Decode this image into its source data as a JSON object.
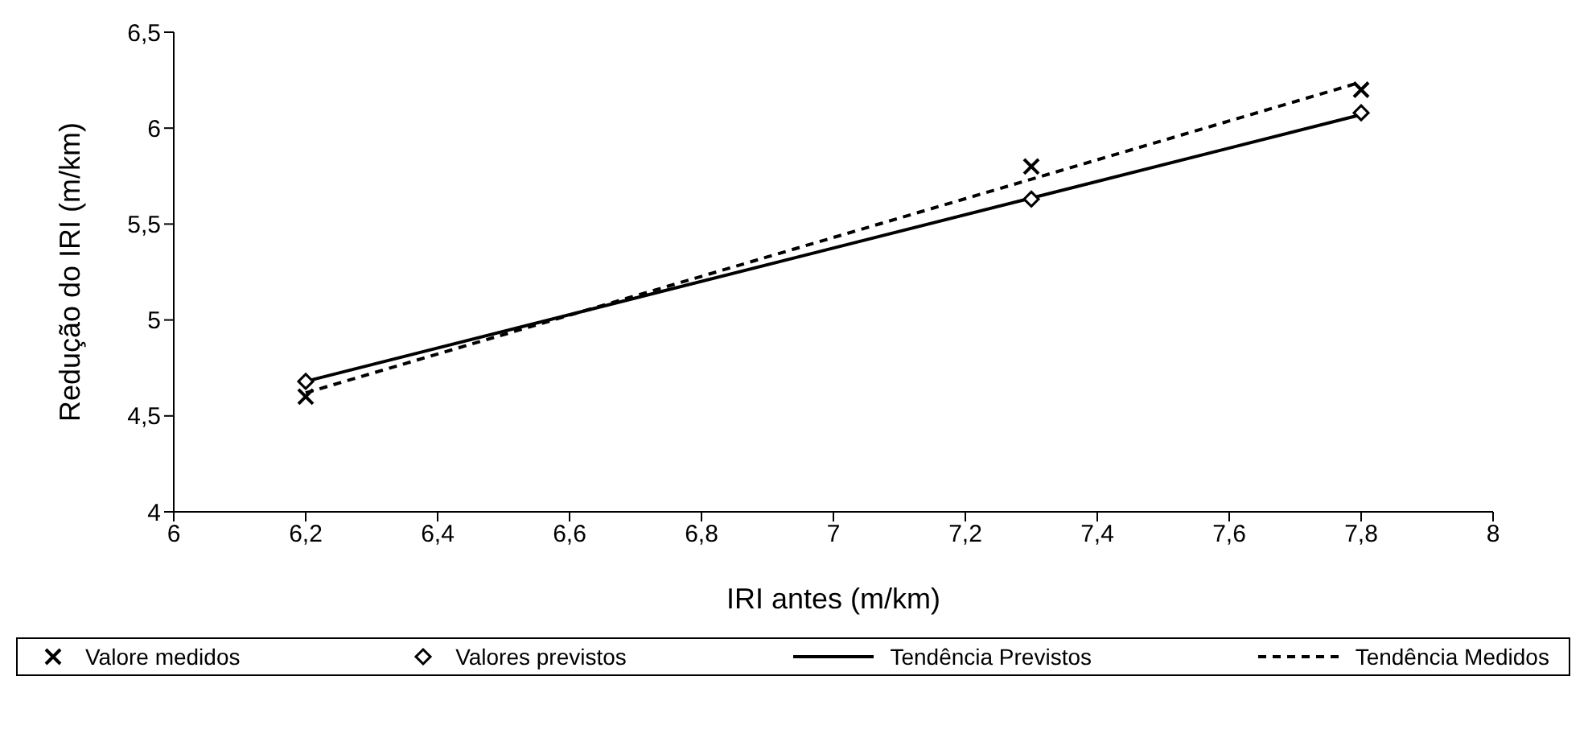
{
  "chart_data": {
    "type": "scatter",
    "xlabel": "IRI antes (m/km)",
    "ylabel": "Redução do IRI (m/km)",
    "xlim": [
      6,
      8
    ],
    "xticks": [
      {
        "value": 6,
        "label": "6"
      },
      {
        "value": 6.2,
        "label": "6,2"
      },
      {
        "value": 6.4,
        "label": "6,4"
      },
      {
        "value": 6.6,
        "label": "6,6"
      },
      {
        "value": 6.8,
        "label": "6,8"
      },
      {
        "value": 7,
        "label": "7"
      },
      {
        "value": 7.2,
        "label": "7,2"
      },
      {
        "value": 7.4,
        "label": "7,4"
      },
      {
        "value": 7.6,
        "label": "7,6"
      },
      {
        "value": 7.8,
        "label": "7,8"
      },
      {
        "value": 8,
        "label": "8"
      }
    ],
    "ylim": [
      4,
      6.5
    ],
    "yticks": [
      {
        "value": 4,
        "label": "4"
      },
      {
        "value": 4.5,
        "label": "4,5"
      },
      {
        "value": 5,
        "label": "5"
      },
      {
        "value": 5.5,
        "label": "5,5"
      },
      {
        "value": 6,
        "label": "6"
      },
      {
        "value": 6.5,
        "label": "6,5"
      }
    ],
    "legend": "bottom",
    "series": [
      {
        "name": "Valore medidos",
        "marker": "cross",
        "color": "#000000",
        "x": [
          6.2,
          7.3,
          7.8
        ],
        "values": [
          4.6,
          5.8,
          6.2
        ]
      },
      {
        "name": "Valores previstos",
        "marker": "diamond",
        "color": "#000000",
        "x": [
          6.2,
          7.3,
          7.8
        ],
        "values": [
          4.68,
          5.63,
          6.08
        ]
      },
      {
        "name": "Tendência Previstos",
        "type": "line",
        "line_style": "solid",
        "color": "#000000",
        "x": [
          6.2,
          7.8
        ],
        "values": [
          4.68,
          6.07
        ]
      },
      {
        "name": "Tendência Medidos",
        "type": "line",
        "line_style": "dashed",
        "color": "#000000",
        "x": [
          6.2,
          7.8
        ],
        "values": [
          4.62,
          6.24
        ]
      }
    ]
  }
}
